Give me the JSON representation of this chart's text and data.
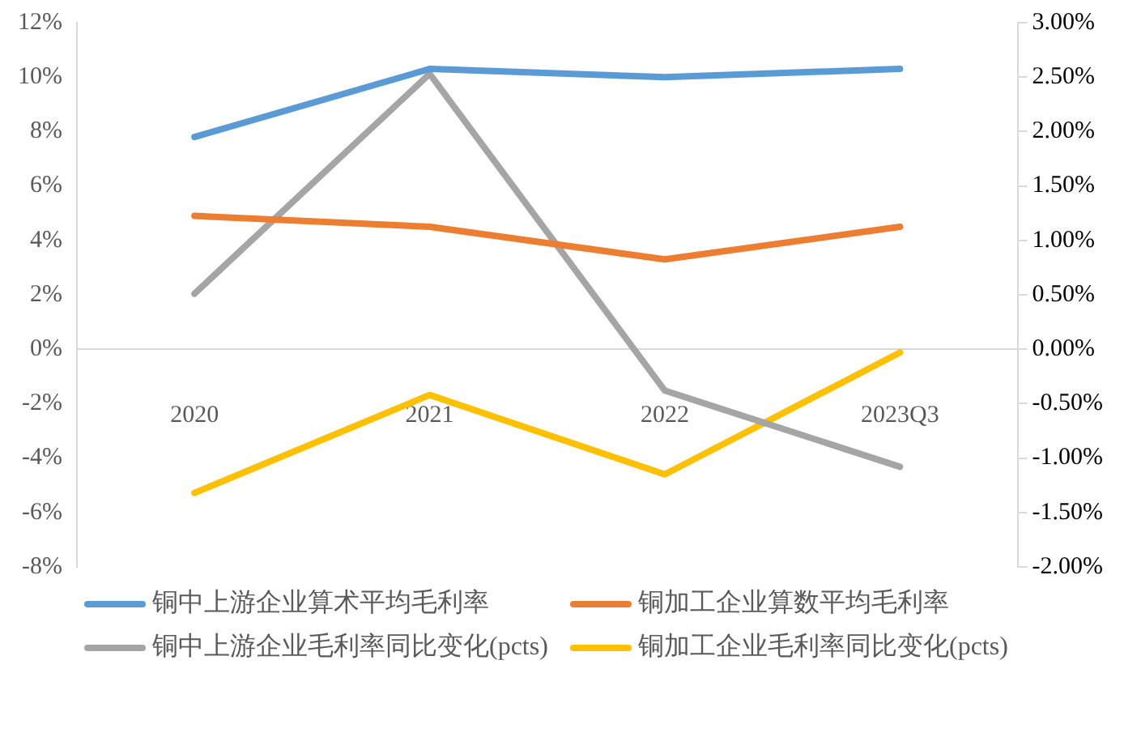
{
  "chart_data": {
    "type": "line",
    "categories": [
      "2020",
      "2021",
      "2022",
      "2023Q3"
    ],
    "ylim": [
      -8,
      12
    ],
    "yticks": [
      {
        "value": -8,
        "label": "-8%"
      },
      {
        "value": -6,
        "label": "-6%"
      },
      {
        "value": -4,
        "label": "-4%"
      },
      {
        "value": -2,
        "label": "-2%"
      },
      {
        "value": 0,
        "label": "0%"
      },
      {
        "value": 2,
        "label": "2%"
      },
      {
        "value": 4,
        "label": "4%"
      },
      {
        "value": 6,
        "label": "6%"
      },
      {
        "value": 8,
        "label": "8%"
      },
      {
        "value": 10,
        "label": "10%"
      },
      {
        "value": 12,
        "label": "12%"
      }
    ],
    "y2lim": [
      -2,
      3
    ],
    "y2ticks": [
      {
        "value": -2,
        "label": "-2.00%"
      },
      {
        "value": -1.5,
        "label": "-1.50%"
      },
      {
        "value": -1,
        "label": "-1.00%"
      },
      {
        "value": -0.5,
        "label": "-0.50%"
      },
      {
        "value": 0,
        "label": "0.00%"
      },
      {
        "value": 0.5,
        "label": "0.50%"
      },
      {
        "value": 1,
        "label": "1.00%"
      },
      {
        "value": 1.5,
        "label": "1.50%"
      },
      {
        "value": 2,
        "label": "2.00%"
      },
      {
        "value": 2.5,
        "label": "2.50%"
      },
      {
        "value": 3,
        "label": "3.00%"
      }
    ],
    "series": [
      {
        "name": "铜中上游企业算术平均毛利率",
        "color": "#5b9bd5",
        "values": [
          7.8,
          10.3,
          10.0,
          10.3
        ]
      },
      {
        "name": "铜加工企业算数平均毛利率",
        "color": "#ed7d31",
        "values": [
          4.9,
          4.5,
          3.3,
          4.5
        ]
      },
      {
        "name": "铜中上游企业毛利率同比变化(pcts)",
        "color": "#a5a5a5",
        "axis": "y2",
        "values": [
          0.51,
          2.53,
          -0.38,
          -1.08
        ]
      },
      {
        "name": "铜加工企业毛利率同比变化(pcts)",
        "color": "#ffc000",
        "axis": "y2",
        "values": [
          -1.32,
          -0.42,
          -1.15,
          -0.03
        ]
      }
    ],
    "grid": false,
    "legend": "bottom",
    "marker": "none",
    "line_style": "solid"
  }
}
